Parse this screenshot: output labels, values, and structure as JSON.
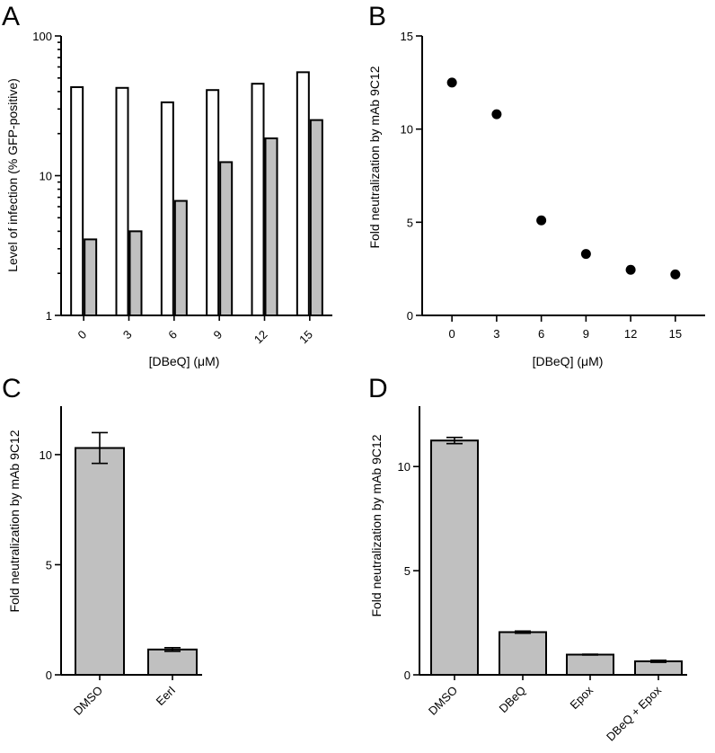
{
  "figure": {
    "panel_labels": [
      "A",
      "B",
      "C",
      "D"
    ]
  },
  "chart_data": [
    {
      "panel": "A",
      "type": "bar",
      "categories": [
        "0",
        "3",
        "6",
        "9",
        "12",
        "15"
      ],
      "series": [
        {
          "values": [
            43,
            42.5,
            33.5,
            41,
            45.5,
            55
          ],
          "fill": "#ffffff"
        },
        {
          "values": [
            3.5,
            4.0,
            6.6,
            12.5,
            18.5,
            25
          ],
          "fill": "#c0c0c0"
        }
      ],
      "xlabel": "[DBeQ] (μM)",
      "ylabel": "Level of infection (% GFP-positive)",
      "yscale": "log",
      "ylim": [
        1,
        100
      ],
      "yticks": [
        "1",
        "10",
        "100"
      ]
    },
    {
      "panel": "B",
      "type": "scatter",
      "x": [
        0,
        3,
        6,
        9,
        12,
        15
      ],
      "y": [
        12.5,
        10.8,
        5.1,
        3.3,
        2.45,
        2.2
      ],
      "xlabel": "[DBeQ] (μM)",
      "ylabel": "Fold neutralization by mAb 9C12",
      "xticks": [
        "0",
        "3",
        "6",
        "9",
        "12",
        "15"
      ],
      "yticks": [
        "0",
        "5",
        "10",
        "15"
      ],
      "ylim": [
        0,
        15
      ]
    },
    {
      "panel": "C",
      "type": "bar",
      "categories": [
        "DMSO",
        "EerI"
      ],
      "values": [
        10.3,
        1.15
      ],
      "errors": [
        0.7,
        0.08
      ],
      "ylabel": "Fold neutralization by mAb 9C12",
      "yticks": [
        "0",
        "5",
        "10"
      ],
      "ylim": [
        0,
        12.2
      ]
    },
    {
      "panel": "D",
      "type": "bar",
      "categories": [
        "DMSO",
        "DBeQ",
        "Epox",
        "DBeQ + Epox"
      ],
      "values": [
        11.25,
        2.05,
        0.97,
        0.65
      ],
      "errors": [
        0.15,
        0.05,
        0.02,
        0.05
      ],
      "ylabel": "Fold neutralization by mAb 9C12",
      "yticks": [
        "0",
        "5",
        "10"
      ],
      "ylim": [
        0,
        12.9
      ]
    }
  ]
}
